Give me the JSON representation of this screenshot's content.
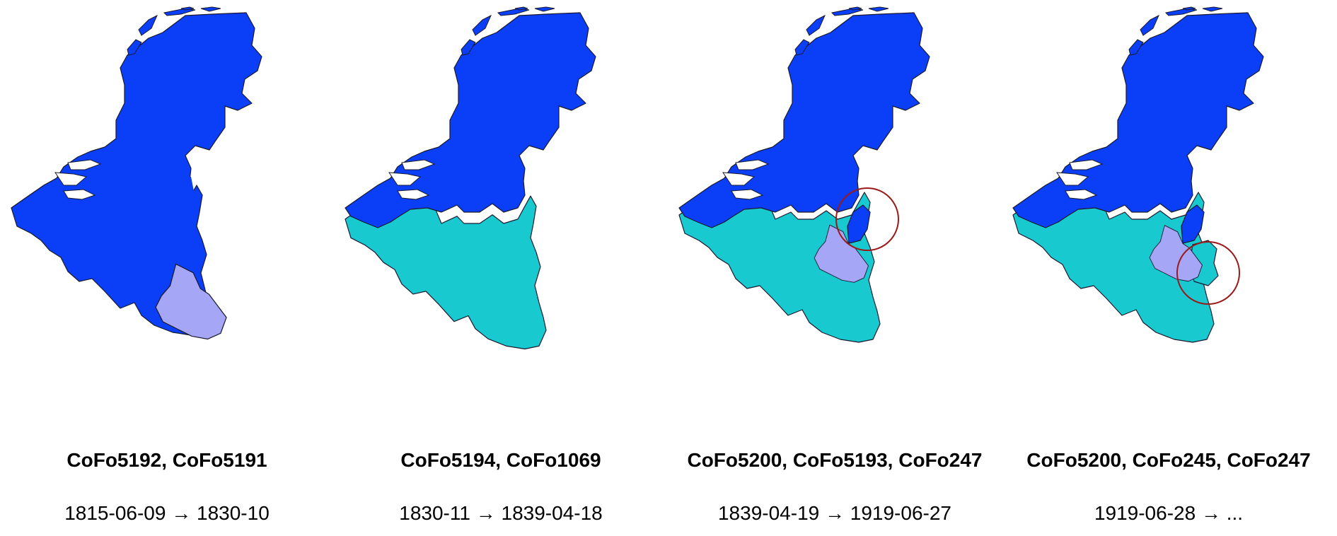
{
  "colors": {
    "netherlands": "#0a3ef7",
    "belgium": "#18c9d0",
    "luxembourg": "#a6a6f7",
    "highlight_ring": "#9a1a1a"
  },
  "panels": [
    {
      "codes": "CoFo5192, CoFo5191",
      "dates": "1815-06-09 → 1830-10"
    },
    {
      "codes": "CoFo5194, CoFo1069",
      "dates": "1830-11 → 1839-04-18"
    },
    {
      "codes": "CoFo5200, CoFo5193, CoFo247",
      "dates": "1839-04-19  → 1919-06-27"
    },
    {
      "codes": "CoFo5200, CoFo245, CoFo247",
      "dates": "1919-06-28  → ..."
    }
  ]
}
